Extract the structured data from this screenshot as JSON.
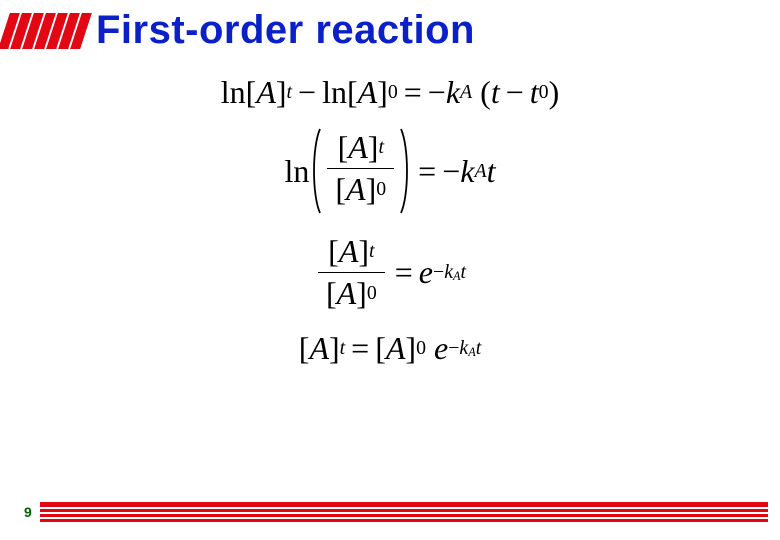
{
  "title": {
    "text": "First-order reaction",
    "color": "#0b20c9",
    "bar_color": "#e30613",
    "bar_count": 7
  },
  "equations": {
    "species": "A",
    "rate_constant": "k",
    "time_var": "t",
    "initial_time": "t",
    "initial_sub": "0",
    "ln_label": "ln",
    "exp_base": "e",
    "minus": "−",
    "eq": "="
  },
  "footer": {
    "page": "9",
    "page_color": "#006400",
    "line_color": "#e30613",
    "line_count": 4
  }
}
